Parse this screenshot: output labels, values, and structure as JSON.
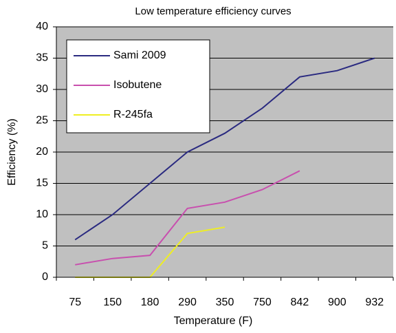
{
  "chart_data": {
    "type": "line",
    "title": "Low temperature efficiency curves",
    "x_label": "Temperature (F)",
    "y_label": "Efficiency (%)",
    "categories": [
      "75",
      "150",
      "180",
      "290",
      "350",
      "750",
      "842",
      "900",
      "932"
    ],
    "series": [
      {
        "name": "Sami 2009",
        "color": "#2a2a80",
        "values": [
          6,
          10,
          15,
          20,
          23,
          27,
          32,
          33,
          35
        ]
      },
      {
        "name": "Isobutene",
        "color": "#c84fae",
        "values": [
          2,
          3,
          3.5,
          11,
          12,
          14,
          17,
          null,
          null
        ]
      },
      {
        "name": "R-245fa",
        "color": "#eeee22",
        "values": [
          0,
          0,
          0,
          7,
          8,
          null,
          null,
          null,
          null
        ]
      }
    ],
    "ylim": [
      0,
      40
    ],
    "yticks": [
      0,
      5,
      10,
      15,
      20,
      25,
      30,
      35,
      40
    ],
    "grid": true,
    "legend": "upper left"
  }
}
